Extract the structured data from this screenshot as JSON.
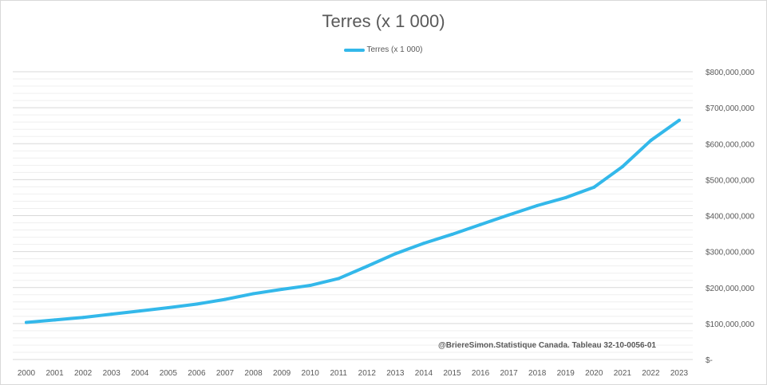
{
  "title": "Terres (x 1 000)",
  "source_note": "@BriereSimon.Statistique Canada. Tableau 32-10-0056-01",
  "colors": {
    "line": "#33b8ea",
    "major_grid": "#d9d9d9",
    "minor_grid": "#efefef",
    "text": "#595959"
  },
  "chart_data": {
    "type": "line",
    "title": "Terres (x 1 000)",
    "xlabel": "",
    "ylabel": "",
    "categories": [
      "2000",
      "2001",
      "2002",
      "2003",
      "2004",
      "2005",
      "2006",
      "2007",
      "2008",
      "2009",
      "2010",
      "2011",
      "2012",
      "2013",
      "2014",
      "2015",
      "2016",
      "2017",
      "2018",
      "2019",
      "2020",
      "2021",
      "2022",
      "2023"
    ],
    "series": [
      {
        "name": "Terres (x 1 000)",
        "values": [
          103000000,
          110000000,
          117000000,
          126000000,
          135000000,
          144000000,
          154000000,
          167000000,
          183000000,
          195000000,
          206000000,
          225000000,
          259000000,
          294000000,
          323000000,
          348000000,
          375000000,
          402000000,
          428000000,
          450000000,
          479000000,
          536000000,
          609000000,
          665000000
        ]
      }
    ],
    "ylim": [
      0,
      800000000
    ],
    "yticks": [
      0,
      100000000,
      200000000,
      300000000,
      400000000,
      500000000,
      600000000,
      700000000,
      800000000
    ],
    "ytick_labels": [
      "$-",
      "$100,000,000",
      "$200,000,000",
      "$300,000,000",
      "$400,000,000",
      "$500,000,000",
      "$600,000,000",
      "$700,000,000",
      "$800,000,000"
    ],
    "y_axis_side": "right",
    "grid": true,
    "minor_grid": true,
    "legend": "top-center"
  }
}
